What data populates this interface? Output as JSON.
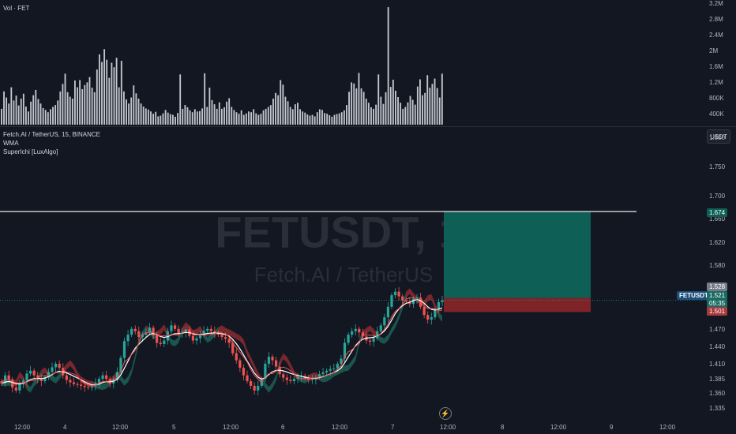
{
  "chart_data": [
    {
      "type": "bar",
      "title": "Vol · FET",
      "y_ticks": [
        "3.2M",
        "2.8M",
        "2.4M",
        "2M",
        "1.6M",
        "1.2M",
        "800K",
        "400K"
      ],
      "ylim": [
        0,
        3300000
      ],
      "series": [
        {
          "values": [
            420000,
            880000,
            720000,
            560000,
            990000,
            640000,
            770000,
            510000,
            690000,
            820000,
            480000,
            350000,
            610000,
            780000,
            920000,
            680000,
            560000,
            440000,
            390000,
            330000,
            410000,
            470000,
            520000,
            640000,
            880000,
            1080000,
            1350000,
            860000,
            740000,
            690000,
            1170000,
            990000,
            1180000,
            940000,
            1050000,
            1120000,
            1260000,
            980000,
            860000,
            1460000,
            1860000,
            1660000,
            2000000,
            1720000,
            1240000,
            1640000,
            1520000,
            1770000,
            990000,
            1690000,
            880000,
            670000,
            560000,
            720000,
            1040000,
            830000,
            690000,
            560000,
            480000,
            430000,
            400000,
            350000,
            290000,
            340000,
            220000,
            240000,
            300000,
            390000,
            320000,
            280000,
            260000,
            210000,
            310000,
            1330000,
            420000,
            520000,
            460000,
            380000,
            330000,
            410000,
            350000,
            360000,
            430000,
            1360000,
            470000,
            980000,
            650000,
            540000,
            420000,
            590000,
            420000,
            460000,
            610000,
            700000,
            470000,
            390000,
            330000,
            290000,
            380000,
            260000,
            300000,
            350000,
            330000,
            410000,
            300000,
            260000,
            290000,
            380000,
            420000,
            470000,
            520000,
            690000,
            840000,
            780000,
            1180000,
            1060000,
            740000,
            620000,
            470000,
            410000,
            540000,
            580000,
            410000,
            350000,
            320000,
            270000,
            240000,
            260000,
            220000,
            330000,
            410000,
            390000,
            310000,
            290000,
            250000,
            210000,
            260000,
            280000,
            300000,
            330000,
            380000,
            520000,
            870000,
            1120000,
            1090000,
            960000,
            1370000,
            960000,
            870000,
            690000,
            580000,
            460000,
            420000,
            530000,
            1330000,
            740000,
            550000,
            860000,
            3110000,
            1000000,
            1190000,
            900000,
            730000,
            580000,
            420000,
            470000,
            590000,
            760000,
            660000,
            530000,
            1010000,
            1200000,
            780000,
            840000,
            1310000,
            980000,
            1080000,
            1220000,
            970000,
            720000,
            1350000
          ]
        }
      ]
    },
    {
      "type": "candlestick",
      "title": "Fetch.AI / TetherUS, 15, BINANCE",
      "ylim": [
        1.325,
        1.81
      ],
      "y_ticks": [
        "1.800",
        "1.750",
        "1.700",
        "1.660",
        "1.620",
        "1.580",
        "1.470",
        "1.440",
        "1.410",
        "1.385",
        "1.360",
        "1.335"
      ],
      "x_ticks": [
        "12:00",
        "4",
        "12:00",
        "5",
        "12:00",
        "6",
        "12:00",
        "7",
        "12:00",
        "8",
        "12:00",
        "9",
        "12:00"
      ],
      "close_path": [
        1.378,
        1.392,
        1.385,
        1.371,
        1.366,
        1.377,
        1.383,
        1.395,
        1.4,
        1.392,
        1.386,
        1.382,
        1.389,
        1.398,
        1.406,
        1.412,
        1.405,
        1.392,
        1.384,
        1.38,
        1.377,
        1.376,
        1.374,
        1.372,
        1.371,
        1.373,
        1.379,
        1.386,
        1.392,
        1.386,
        1.378,
        1.384,
        1.398,
        1.422,
        1.451,
        1.462,
        1.472,
        1.468,
        1.458,
        1.462,
        1.466,
        1.474,
        1.461,
        1.448,
        1.446,
        1.452,
        1.468,
        1.478,
        1.472,
        1.464,
        1.466,
        1.471,
        1.46,
        1.452,
        1.456,
        1.463,
        1.469,
        1.472,
        1.468,
        1.465,
        1.462,
        1.458,
        1.455,
        1.448,
        1.43,
        1.418,
        1.405,
        1.392,
        1.382,
        1.374,
        1.366,
        1.374,
        1.386,
        1.412,
        1.424,
        1.418,
        1.407,
        1.394,
        1.388,
        1.384,
        1.382,
        1.386,
        1.39,
        1.391,
        1.387,
        1.384,
        1.385,
        1.389,
        1.394,
        1.397,
        1.4,
        1.403,
        1.404,
        1.412,
        1.421,
        1.448,
        1.462,
        1.468,
        1.472,
        1.466,
        1.459,
        1.452,
        1.45,
        1.456,
        1.468,
        1.478,
        1.492,
        1.51,
        1.53,
        1.536,
        1.528,
        1.521,
        1.519,
        1.515,
        1.524,
        1.526,
        1.51,
        1.496,
        1.488,
        1.492,
        1.505,
        1.518,
        1.521
      ],
      "annotations": {
        "last_price": "1.521",
        "countdown": "05:35",
        "target": "1.674",
        "stop": "1.501",
        "entry_upper": "1.528"
      },
      "watermark": {
        "symbol": "FETUSDT, 15",
        "name": "Fetch.AI / TetherUS"
      }
    }
  ],
  "ui": {
    "currency": "USDT",
    "legend": [
      "WMA",
      "SuperIchi [LuxAlgo]"
    ],
    "symbol_tag": "FETUSDT",
    "logo_glyph": "⚡"
  },
  "colors": {
    "bg": "#131722",
    "up": "#26a69a",
    "down": "#ef5350",
    "grid": "#1e222d",
    "axis_text": "#b2b5be",
    "target_fill": "#0e5f55",
    "stop_fill": "#7e2327",
    "wma": "#ffffff",
    "volume_bar": "#c3c6ce"
  }
}
